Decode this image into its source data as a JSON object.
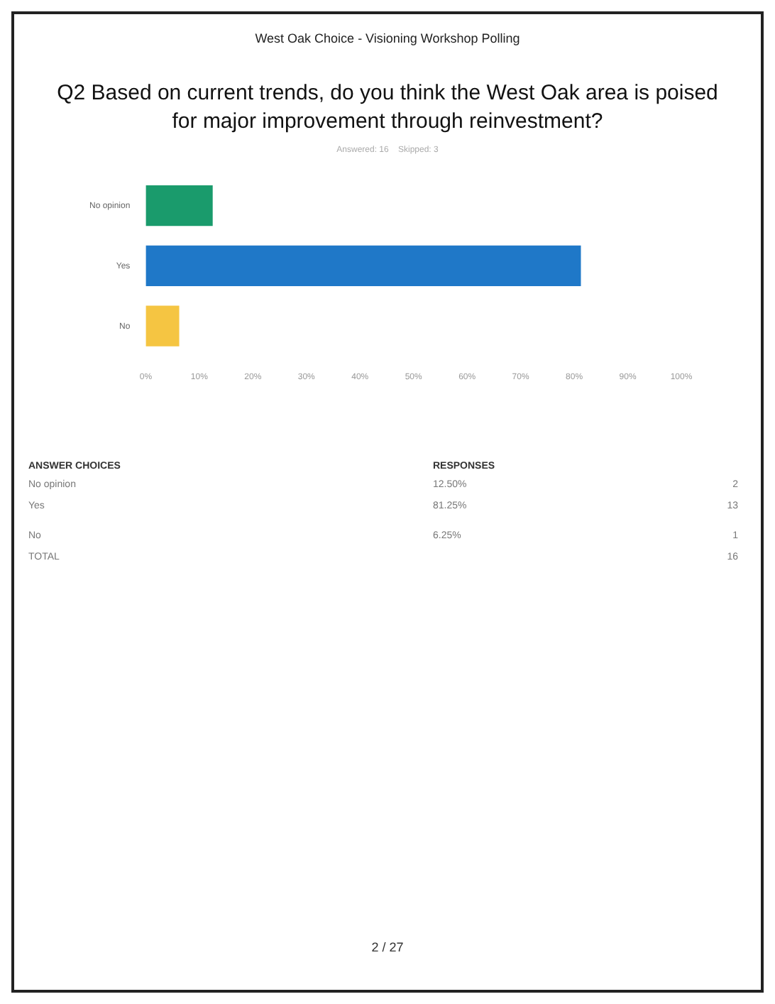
{
  "chart_data": {
    "type": "bar",
    "orientation": "horizontal",
    "title": "Q2 Based on current trends, do you think the West Oak area is poised for major improvement through reinvestment?",
    "subtitle": "Answered: 16    Skipped: 3",
    "categories": [
      "No opinion",
      "Yes",
      "No"
    ],
    "values": [
      12.5,
      81.25,
      6.25
    ],
    "colors": [
      "#1a9b6c",
      "#1f78c8",
      "#f5c542"
    ],
    "xlim": [
      0,
      100
    ],
    "xticks": [
      {
        "value": 0,
        "label": "0%"
      },
      {
        "value": 10,
        "label": "10%"
      },
      {
        "value": 20,
        "label": "20%"
      },
      {
        "value": 30,
        "label": "30%"
      },
      {
        "value": 40,
        "label": "40%"
      },
      {
        "value": 50,
        "label": "50%"
      },
      {
        "value": 60,
        "label": "60%"
      },
      {
        "value": 70,
        "label": "70%"
      },
      {
        "value": 80,
        "label": "80%"
      },
      {
        "value": 90,
        "label": "90%"
      },
      {
        "value": 100,
        "label": "100%"
      }
    ],
    "grid": false,
    "legend": false,
    "annotations": [
      "West Oak Choice - Visioning Workshop Polling",
      "ANSWER CHOICES",
      "RESPONSES",
      "12.50%",
      "81.25%",
      "6.25%",
      "2",
      "13",
      "1",
      "TOTAL",
      "16",
      "2 / 27"
    ]
  }
}
